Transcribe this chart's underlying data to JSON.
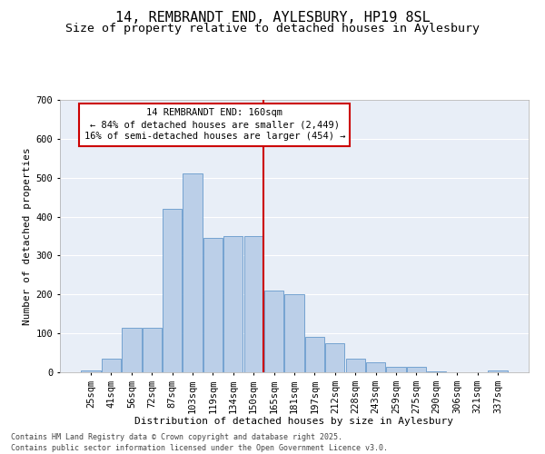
{
  "title1": "14, REMBRANDT END, AYLESBURY, HP19 8SL",
  "title2": "Size of property relative to detached houses in Aylesbury",
  "xlabel": "Distribution of detached houses by size in Aylesbury",
  "ylabel": "Number of detached properties",
  "categories": [
    "25sqm",
    "41sqm",
    "56sqm",
    "72sqm",
    "87sqm",
    "103sqm",
    "119sqm",
    "134sqm",
    "150sqm",
    "165sqm",
    "181sqm",
    "197sqm",
    "212sqm",
    "228sqm",
    "243sqm",
    "259sqm",
    "275sqm",
    "290sqm",
    "306sqm",
    "321sqm",
    "337sqm"
  ],
  "values": [
    5,
    35,
    115,
    115,
    420,
    510,
    345,
    350,
    350,
    210,
    200,
    90,
    75,
    35,
    25,
    15,
    15,
    3,
    0,
    0,
    5
  ],
  "bar_color": "#BBCFE8",
  "bar_edge_color": "#6699CC",
  "background_color": "#E8EEF7",
  "grid_color": "#FFFFFF",
  "vline_color": "#CC0000",
  "annotation_title": "14 REMBRANDT END: 160sqm",
  "annotation_line1": "← 84% of detached houses are smaller (2,449)",
  "annotation_line2": "16% of semi-detached houses are larger (454) →",
  "annotation_box_color": "#CC0000",
  "ylim": [
    0,
    700
  ],
  "yticks": [
    0,
    100,
    200,
    300,
    400,
    500,
    600,
    700
  ],
  "footer": "Contains HM Land Registry data © Crown copyright and database right 2025.\nContains public sector information licensed under the Open Government Licence v3.0.",
  "title1_fontsize": 11,
  "title2_fontsize": 9.5,
  "xlabel_fontsize": 8,
  "ylabel_fontsize": 8,
  "tick_fontsize": 7.5,
  "footer_fontsize": 6,
  "annot_fontsize": 7.5
}
